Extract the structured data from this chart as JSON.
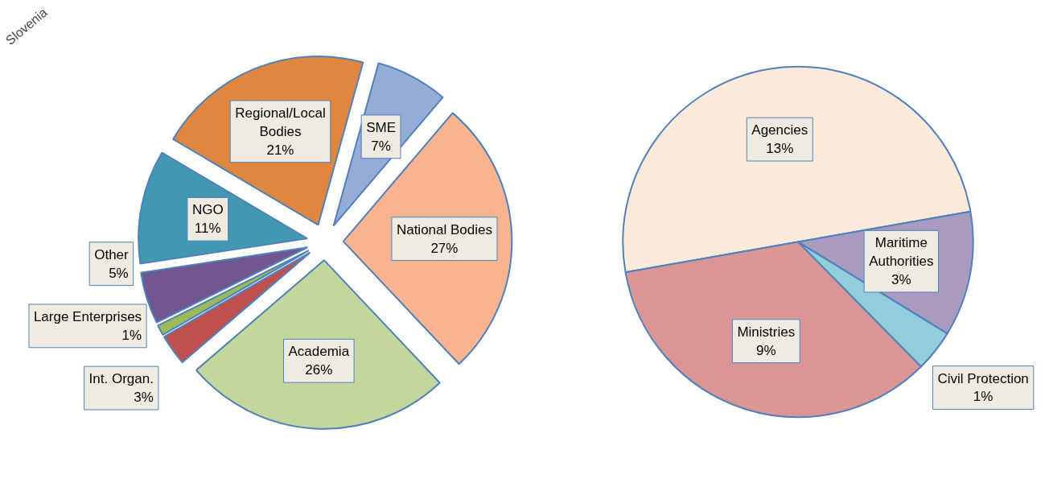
{
  "chart_data": [
    {
      "type": "pie",
      "annotations": [
        "Slovenia"
      ],
      "categories": [
        "Regional/Local Bodies",
        "SME",
        "National Bodies",
        "Academia",
        "Int. Organ.",
        "Large Enterprises",
        "Other",
        "NGO"
      ],
      "values": [
        21,
        7,
        27,
        26,
        3,
        1,
        5,
        11
      ],
      "value_labels": [
        "21%",
        "7%",
        "27%",
        "26%",
        "3%",
        "1%",
        "5%",
        "11%"
      ],
      "colors": [
        "#e0863f",
        "#94acd6",
        "#f8b490",
        "#c3d69b",
        "#c0504d",
        "#9bbb59",
        "#72568f",
        "#4198b0"
      ],
      "legend": false
    },
    {
      "type": "pie",
      "categories": [
        "Agencies",
        "Maritime Authorities",
        "Civil Protection",
        "Ministries"
      ],
      "values": [
        13,
        3,
        1,
        9
      ],
      "value_labels": [
        "13%",
        "3%",
        "1%",
        "9%"
      ],
      "colors": [
        "#fde9d9",
        "#a99bc0",
        "#92cddc",
        "#d99694"
      ],
      "legend": false
    }
  ]
}
